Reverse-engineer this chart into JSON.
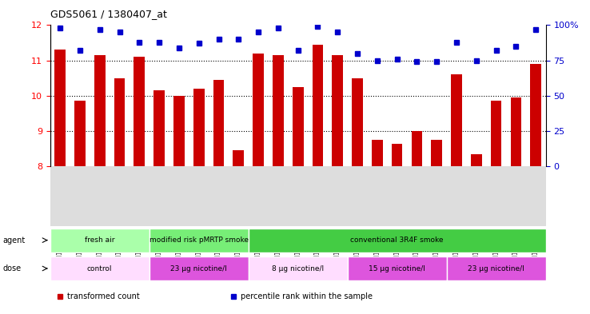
{
  "title": "GDS5061 / 1380407_at",
  "samples": [
    "GSM1217156",
    "GSM1217157",
    "GSM1217158",
    "GSM1217159",
    "GSM1217160",
    "GSM1217161",
    "GSM1217162",
    "GSM1217163",
    "GSM1217164",
    "GSM1217165",
    "GSM1217171",
    "GSM1217172",
    "GSM1217173",
    "GSM1217174",
    "GSM1217175",
    "GSM1217166",
    "GSM1217167",
    "GSM1217168",
    "GSM1217169",
    "GSM1217170",
    "GSM1217176",
    "GSM1217177",
    "GSM1217178",
    "GSM1217179",
    "GSM1217180"
  ],
  "bar_values": [
    11.3,
    9.85,
    11.15,
    10.5,
    11.1,
    10.15,
    10.0,
    10.2,
    10.45,
    8.45,
    11.2,
    11.15,
    10.25,
    11.45,
    11.15,
    10.5,
    8.75,
    8.65,
    9.0,
    8.75,
    10.6,
    8.35,
    9.85,
    9.95,
    10.9
  ],
  "percentile_values": [
    98,
    82,
    97,
    95,
    88,
    88,
    84,
    87,
    90,
    90,
    95,
    98,
    82,
    99,
    95,
    80,
    75,
    76,
    74,
    74,
    88,
    75,
    82,
    85,
    97
  ],
  "bar_color": "#cc0000",
  "percentile_color": "#0000cc",
  "ylim_left": [
    8,
    12
  ],
  "ylim_right": [
    0,
    100
  ],
  "yticks_left": [
    8,
    9,
    10,
    11,
    12
  ],
  "yticks_right": [
    0,
    25,
    50,
    75,
    100
  ],
  "ytick_labels_right": [
    "0",
    "25",
    "50",
    "75",
    "100%"
  ],
  "agent_groups": [
    {
      "label": "fresh air",
      "start": 0,
      "end": 5,
      "color": "#aaffaa"
    },
    {
      "label": "modified risk pMRTP smoke",
      "start": 5,
      "end": 10,
      "color": "#77ee77"
    },
    {
      "label": "conventional 3R4F smoke",
      "start": 10,
      "end": 25,
      "color": "#44cc44"
    }
  ],
  "dose_groups": [
    {
      "label": "control",
      "start": 0,
      "end": 5,
      "color": "#ffddff"
    },
    {
      "label": "23 μg nicotine/l",
      "start": 5,
      "end": 10,
      "color": "#dd55dd"
    },
    {
      "label": "8 μg nicotine/l",
      "start": 10,
      "end": 15,
      "color": "#ffddff"
    },
    {
      "label": "15 μg nicotine/l",
      "start": 15,
      "end": 20,
      "color": "#dd55dd"
    },
    {
      "label": "23 μg nicotine/l",
      "start": 20,
      "end": 25,
      "color": "#dd55dd"
    }
  ],
  "legend_items": [
    {
      "label": "transformed count",
      "color": "#cc0000"
    },
    {
      "label": "percentile rank within the sample",
      "color": "#0000cc"
    }
  ],
  "background_color": "#ffffff",
  "tick_area_color": "#dddddd"
}
